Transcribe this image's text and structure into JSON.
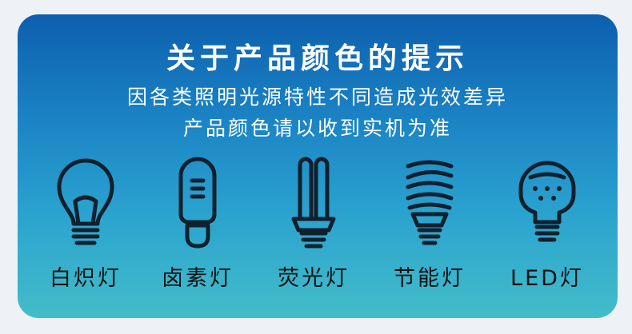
{
  "title": "关于产品颜色的提示",
  "notice": {
    "line1": "因各类照明光源特性不同造成光效差异",
    "line2": "产品颜色请以收到实机为准"
  },
  "bulbs": [
    {
      "label": "白炽灯",
      "icon": "incandescent-bulb-icon"
    },
    {
      "label": "卤素灯",
      "icon": "halogen-bulb-icon"
    },
    {
      "label": "荧光灯",
      "icon": "fluorescent-tube-icon"
    },
    {
      "label": "节能灯",
      "icon": "cfl-spiral-bulb-icon"
    },
    {
      "label": "LED灯",
      "icon": "led-bulb-icon"
    }
  ],
  "colors": {
    "gradient_top": "#0d5fae",
    "gradient_bottom": "#43bdc9",
    "icon_stroke": "#10202c",
    "text_white": "#ffffff",
    "label_dark": "#111111"
  }
}
